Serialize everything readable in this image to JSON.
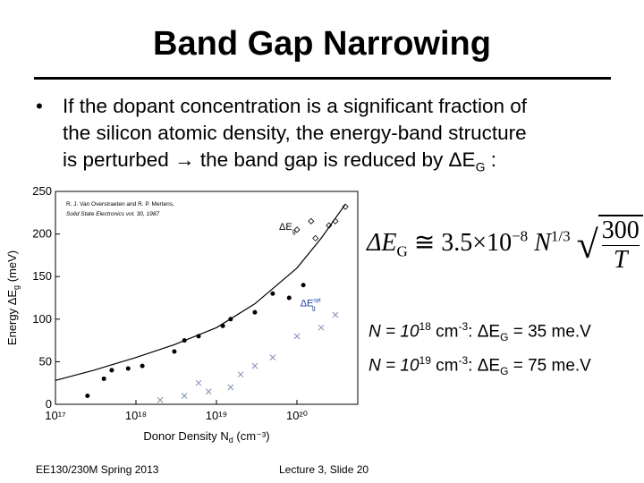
{
  "slide": {
    "title": "Band Gap Narrowing",
    "bullet": {
      "lines": [
        "If the dopant concentration is a significant fraction of",
        "the silicon atomic density, the energy-band structure",
        "is perturbed → the band gap is reduced by ΔE",
        "G",
        " :"
      ]
    },
    "formula": {
      "lhs": "ΔE",
      "lhs_sub": "G",
      "rel": "≅ 3.5×10",
      "exp": "−8",
      "n": "N",
      "n_exp": "1/3",
      "num": "300",
      "den": "T"
    },
    "notes": [
      {
        "pre": "N = 10",
        "exp1": "18",
        "mid": " cm",
        "exp2": "-3",
        "post": ": ΔE",
        "sub": "G",
        "end": " = 35 me.V"
      },
      {
        "pre": "N = 10",
        "exp1": "19",
        "mid": " cm",
        "exp2": "-3",
        "post": ": ΔE",
        "sub": "G",
        "end": " = 75 me.V"
      }
    ],
    "footer_left": "EE130/230M Spring 2013",
    "footer_center": "Lecture 3, Slide 20"
  },
  "chart_data": {
    "type": "scatter",
    "x_label": "Donor Density N",
    "x_label_sub": "d",
    "x_label_unit": " (cm⁻³)",
    "y_label": "Energy ΔE",
    "y_label_sub": "g",
    "y_label_unit": " (meV)",
    "reference": [
      "R. J. Van Overstraeten and R. P. Mertens,",
      "Solid State Electronics vol. 30, 1987"
    ],
    "annotations": [
      {
        "text": "ΔE",
        "sub": "g",
        "x": 6e+19,
        "y": 205,
        "color": "#000000"
      },
      {
        "text": "ΔE",
        "sub": "g",
        "sup": "opt",
        "x": 1.1e+20,
        "y": 115,
        "color": "#1f3fb0"
      }
    ],
    "log_x": true,
    "xlim": [
      1e+17,
      5.7e+20
    ],
    "ylim": [
      0,
      250
    ],
    "xticks": [
      {
        "value": 1e+17,
        "label": "10¹⁷"
      },
      {
        "value": 1e+18,
        "label": "10¹⁸"
      },
      {
        "value": 1e+19,
        "label": "10¹⁹"
      },
      {
        "value": 1e+20,
        "label": "10²⁰"
      }
    ],
    "yticks": [
      0,
      50,
      100,
      150,
      200,
      250
    ],
    "series": [
      {
        "name": "fit",
        "marker": "line",
        "color": "#000000",
        "x": [
          1e+17,
          3e+17,
          1e+18,
          3e+18,
          1e+19,
          3e+19,
          1e+20,
          2e+20,
          4e+20
        ],
        "values": [
          28,
          40,
          55,
          70,
          90,
          118,
          160,
          195,
          235
        ]
      },
      {
        "name": "ΔEg",
        "marker": "circle",
        "color": "#000000",
        "x": [
          2.5e+17,
          4e+17,
          5e+17,
          8e+17,
          1.2e+18,
          3e+18,
          4e+18,
          6e+18,
          1.2e+19,
          1.5e+19,
          3e+19,
          5e+19,
          8e+19,
          1.2e+20
        ],
        "values": [
          10,
          30,
          40,
          42,
          45,
          62,
          75,
          80,
          92,
          100,
          108,
          130,
          125,
          140
        ]
      },
      {
        "name": "ΔEg high",
        "marker": "diamond",
        "color": "#000000",
        "x": [
          1e+20,
          1.5e+20,
          1.7e+20,
          2.5e+20,
          3e+20,
          4e+20
        ],
        "values": [
          205,
          215,
          195,
          210,
          215,
          232
        ]
      },
      {
        "name": "ΔEg opt",
        "marker": "x",
        "color": "#7f8fb8",
        "x": [
          2e+18,
          4e+18,
          6e+18,
          8e+18,
          1.5e+19,
          2e+19,
          3e+19,
          5e+19,
          1e+20,
          2e+20,
          3e+20
        ],
        "values": [
          5,
          10,
          25,
          15,
          20,
          35,
          45,
          55,
          80,
          90,
          105
        ]
      }
    ]
  }
}
